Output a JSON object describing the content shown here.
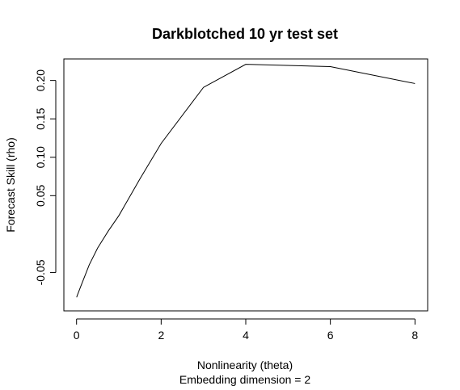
{
  "chart_data": {
    "type": "line",
    "title": "Darkblotched 10 yr test set",
    "xlabel": "Nonlinearity (theta)",
    "subxlabel": "Embedding dimension = 2",
    "ylabel": "Forecast Skill (rho)",
    "x": [
      0,
      0.0001,
      0.0003,
      0.001,
      0.003,
      0.01,
      0.03,
      0.1,
      0.3,
      0.5,
      0.75,
      1,
      1.5,
      2,
      3,
      4,
      6,
      8
    ],
    "y": [
      -0.082,
      -0.082,
      -0.082,
      -0.082,
      -0.082,
      -0.081,
      -0.078,
      -0.068,
      -0.04,
      -0.018,
      0.004,
      0.024,
      0.072,
      0.118,
      0.191,
      0.221,
      0.218,
      0.196
    ],
    "xlim": [
      -0.3,
      8.3
    ],
    "ylim": [
      -0.1,
      0.228
    ],
    "xticks": [
      0,
      2,
      4,
      6,
      8
    ],
    "yticks": [
      -0.05,
      0.05,
      0.1,
      0.15,
      0.2
    ],
    "ytick_labels": [
      "-0.05",
      "0.05",
      "0.10",
      "0.15",
      "0.20"
    ],
    "grid": false,
    "line_color": "#000000"
  }
}
